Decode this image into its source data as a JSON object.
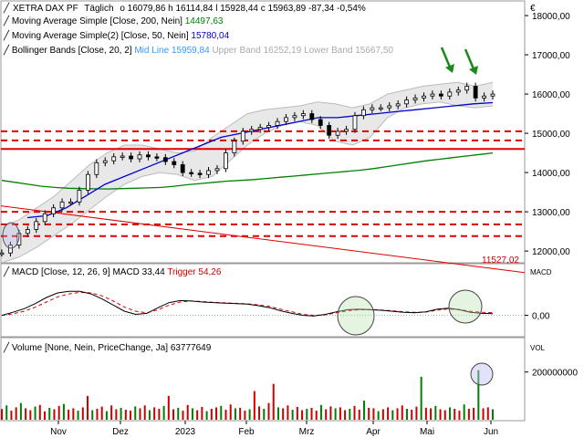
{
  "chart_data": [
    {
      "type": "line",
      "panel": "price",
      "currency_symbol": "€",
      "header": {
        "symbol": "XETRA DAX PF",
        "interval": "Täglich",
        "ohlc": "o 16079,86  h 16114,84  l 15928,44  c 15963,89  -87,34  -0,54%"
      },
      "indicators": [
        {
          "label": "Moving Average Simple",
          "params": "[Close, 200, Nein]",
          "value": "14497,63",
          "color": "#008000"
        },
        {
          "label": "Moving Average Simple(2)",
          "params": "[Close, 50, Nein]",
          "value": "15780,04",
          "color": "#0000cc"
        },
        {
          "label": "Bollinger Bands",
          "params": "[Close, 20, 2]",
          "mid_label": "Mid Line",
          "mid_value": "15959,84",
          "upper_label": "Upper Band",
          "upper_value": "16252,19",
          "lower_label": "Lower Band",
          "lower_value": "15667,50"
        }
      ],
      "x_ticks": [
        "Nov",
        "Dez",
        "2023",
        "Feb",
        "Mrz",
        "Apr",
        "Mai",
        "Jun"
      ],
      "y_ticks": [
        "18000,00",
        "17000,00",
        "16000,00",
        "15000,00",
        "14000,00",
        "13000,00",
        "12000,00"
      ],
      "y_tick_values": [
        18000,
        17000,
        16000,
        15000,
        14000,
        13000,
        12000
      ],
      "ylim": [
        11700,
        18350
      ],
      "close": [
        11950,
        12150,
        12450,
        12550,
        12750,
        12950,
        13100,
        13250,
        13250,
        13550,
        13950,
        14250,
        14300,
        14400,
        14420,
        14350,
        14450,
        14400,
        14380,
        14280,
        14200,
        14000,
        13980,
        13950,
        14050,
        14100,
        14500,
        14800,
        15050,
        15100,
        15150,
        15200,
        15300,
        15400,
        15450,
        15500,
        15350,
        15200,
        14950,
        15050,
        15100,
        15450,
        15600,
        15650,
        15650,
        15700,
        15750,
        15850,
        15900,
        15950,
        16000,
        15950,
        16050,
        16100,
        16200,
        15900,
        15950,
        16000
      ],
      "ma200": [
        13800,
        13750,
        13700,
        13650,
        13620,
        13600,
        13590,
        13585,
        13580,
        13590,
        13600,
        13610,
        13620,
        13650,
        13690,
        13720,
        13750,
        13780,
        13800,
        13820,
        13850,
        13880,
        13910,
        13940,
        13970,
        14000,
        14030,
        14060,
        14100,
        14150,
        14200,
        14250,
        14300,
        14340,
        14380,
        14420,
        14460,
        14500
      ],
      "ma50": [
        12850,
        12900,
        13100,
        13400,
        13700,
        13900,
        14100,
        14300,
        14500,
        14700,
        14900,
        15000,
        15100,
        15200,
        15300,
        15400,
        15400,
        15450,
        15500,
        15550,
        15600,
        15650,
        15700,
        15750,
        15780
      ],
      "bb_upper": [
        12600,
        12800,
        13100,
        13400,
        13800,
        14200,
        14500,
        14700,
        14700,
        14600,
        14500,
        14550,
        14900,
        15200,
        15500,
        15600,
        15650,
        15700,
        15800,
        15750,
        15650,
        15750,
        16000,
        16100,
        16200,
        16250,
        16300,
        16200,
        16300
      ],
      "bb_lower": [
        11700,
        11850,
        12100,
        12400,
        12700,
        13050,
        13400,
        13700,
        13900,
        14000,
        13950,
        13800,
        13900,
        14300,
        14700,
        15000,
        15200,
        15300,
        15200,
        14800,
        14700,
        14900,
        15400,
        15650,
        15750,
        15800,
        15700,
        15650,
        15700
      ],
      "support_dashed": [
        15050,
        14820,
        13000,
        12680,
        12380
      ],
      "support_solid": 14600,
      "trendline_label": "11527,02",
      "trendline": [
        13150,
        11450
      ]
    },
    {
      "type": "line",
      "panel": "macd",
      "label": "MACD",
      "params": "[Close, 12, 26, 9]",
      "macd_label": "MACD",
      "macd_value": "33,44",
      "trigger_label": "Trigger",
      "trigger_value": "54,26",
      "axis_label": "MACD",
      "y_ticks": [
        "0,00"
      ],
      "ylim": [
        -400,
        600
      ],
      "macd": [
        0,
        60,
        130,
        230,
        350,
        440,
        470,
        470,
        420,
        320,
        200,
        80,
        20,
        40,
        150,
        250,
        290,
        280,
        260,
        250,
        240,
        230,
        220,
        190,
        150,
        90,
        40,
        0,
        -10,
        20,
        70,
        110,
        120,
        110,
        100,
        80,
        60,
        50,
        70,
        120,
        140,
        110,
        60,
        40,
        34
      ],
      "trigger": [
        0,
        30,
        80,
        160,
        260,
        360,
        420,
        450,
        440,
        380,
        280,
        160,
        80,
        50,
        110,
        200,
        260,
        280,
        270,
        255,
        245,
        235,
        225,
        205,
        175,
        120,
        70,
        20,
        0,
        10,
        50,
        90,
        110,
        115,
        105,
        90,
        70,
        60,
        65,
        100,
        125,
        115,
        80,
        60,
        54
      ]
    },
    {
      "type": "bar",
      "panel": "volume",
      "label": "Volume",
      "params": "[None, Nein, PriceChange, Ja]",
      "value": "63777649",
      "axis_label": "VOL",
      "y_ticks": [
        "200000000"
      ],
      "ylim": [
        0,
        260000000
      ],
      "values": [
        45,
        60,
        38,
        52,
        70,
        48,
        40,
        55,
        62,
        35,
        50,
        44,
        58,
        66,
        42,
        48,
        38,
        52,
        100,
        40,
        46,
        55,
        36,
        60,
        44,
        50,
        42,
        38,
        56,
        48,
        60,
        40,
        52,
        46,
        58,
        100,
        44,
        50,
        38,
        62,
        48,
        40,
        54,
        36,
        46,
        52,
        58,
        42,
        64,
        48,
        50,
        38,
        44,
        120,
        56,
        46,
        70,
        150,
        52,
        48,
        60,
        42,
        54,
        40,
        46,
        50,
        38,
        62,
        44,
        56,
        48,
        52,
        40,
        46,
        58,
        42,
        80,
        50,
        48,
        36,
        44,
        52,
        40,
        48,
        60,
        46,
        42,
        55,
        180,
        50,
        48,
        58,
        44,
        40,
        52,
        46,
        38,
        64,
        46,
        50,
        208,
        48,
        52,
        44
      ]
    }
  ]
}
